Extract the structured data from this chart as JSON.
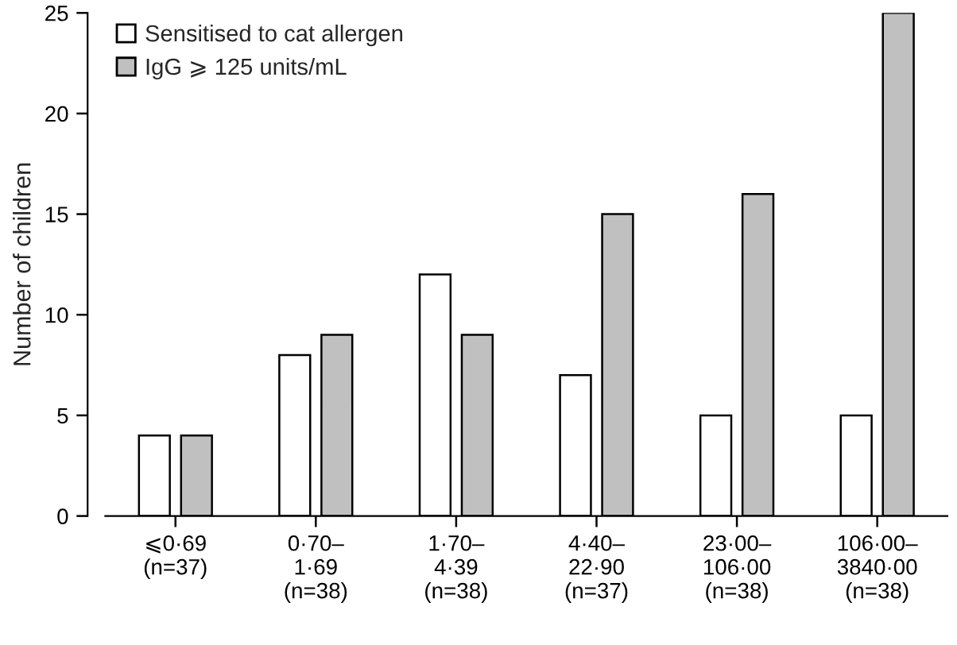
{
  "chart_data": {
    "type": "bar",
    "ylabel": "Number of children",
    "categories": [
      "⩽0·69\n(n=37)",
      "0·70–\n1·69\n(n=38)",
      "1·70–\n4·39\n(n=38)",
      "4·40–\n22·90\n(n=37)",
      "23·00–\n106·00\n(n=38)",
      "106·00–\n3840·00\n(n=38)"
    ],
    "series": [
      {
        "name": "Sensitised to cat allergen",
        "color": "#ffffff",
        "values": [
          4,
          8,
          12,
          7,
          5,
          5
        ]
      },
      {
        "name": "IgG ⩾ 125 units/mL",
        "color": "#c0c0c0",
        "values": [
          4,
          9,
          9,
          15,
          16,
          25
        ]
      }
    ],
    "ylim": [
      0,
      25
    ],
    "yticks": [
      0,
      5,
      10,
      15,
      20,
      25
    ],
    "grid": false,
    "legend": "top left"
  }
}
